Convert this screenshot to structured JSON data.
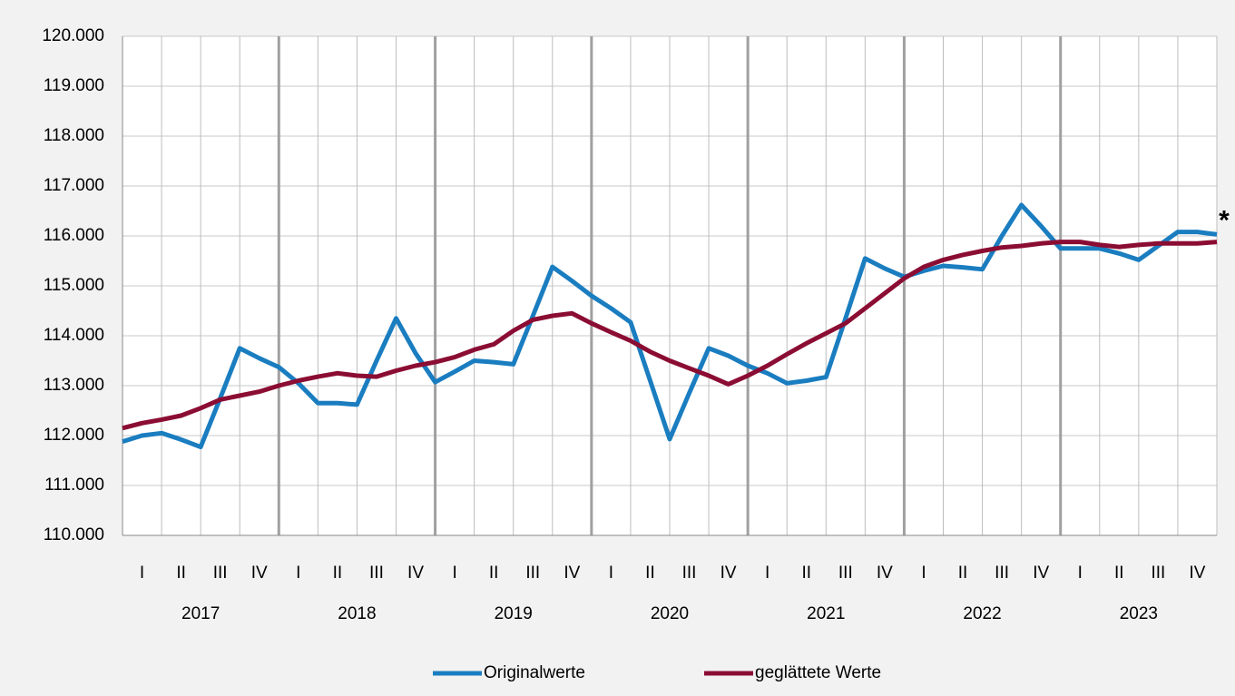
{
  "chart_data": {
    "type": "line",
    "categories": [
      null,
      "I",
      null,
      "II",
      null,
      "III",
      null,
      "IV",
      null,
      "I",
      null,
      "II",
      null,
      "III",
      null,
      "IV",
      null,
      "I",
      null,
      "II",
      null,
      "III",
      null,
      "IV",
      null,
      "I",
      null,
      "II",
      null,
      "III",
      null,
      "IV",
      null,
      "I",
      null,
      "II",
      null,
      "III",
      null,
      "IV",
      null,
      "I",
      null,
      "II",
      null,
      "III",
      null,
      "IV",
      null,
      "I",
      null,
      "II",
      null,
      "III",
      null,
      "IV",
      null
    ],
    "years": [
      "2017",
      "2018",
      "2019",
      "2020",
      "2021",
      "2022",
      "2023"
    ],
    "series": [
      {
        "name": "Originalwerte",
        "color": "#1a7dc0",
        "values": [
          111880,
          112000,
          112050,
          111920,
          111770,
          112750,
          113750,
          113550,
          113370,
          113050,
          112650,
          112650,
          112620,
          113500,
          114350,
          113650,
          113070,
          113280,
          113500,
          113470,
          113430,
          114400,
          115380,
          115100,
          114800,
          114550,
          114270,
          113100,
          111930,
          112850,
          113750,
          113600,
          113400,
          113250,
          113050,
          113100,
          113170,
          114350,
          115550,
          115350,
          115180,
          115300,
          115400,
          115370,
          115330,
          116000,
          116620,
          116200,
          115750,
          115750,
          115750,
          115650,
          115520,
          115800,
          116080,
          116080,
          116030
        ]
      },
      {
        "name": "geglättete Werte",
        "color": "#8b0d33",
        "values": [
          112150,
          112250,
          112320,
          112400,
          112550,
          112720,
          112800,
          112880,
          113000,
          113100,
          113180,
          113250,
          113200,
          113180,
          113300,
          113400,
          113470,
          113570,
          113720,
          113830,
          114100,
          114320,
          114400,
          114450,
          114250,
          114070,
          113900,
          113680,
          113500,
          113350,
          113200,
          113030,
          113200,
          113400,
          113630,
          113850,
          114050,
          114250,
          114550,
          114850,
          115150,
          115380,
          115520,
          115620,
          115700,
          115770,
          115800,
          115850,
          115880,
          115880,
          115820,
          115780,
          115820,
          115850,
          115850,
          115850,
          115880
        ]
      }
    ],
    "ylim": [
      110000,
      120000
    ],
    "yticks": [
      {
        "value": 110000,
        "label": "110.000"
      },
      {
        "value": 111000,
        "label": "111.000"
      },
      {
        "value": 112000,
        "label": "112.000"
      },
      {
        "value": 113000,
        "label": "113.000"
      },
      {
        "value": 114000,
        "label": "114.000"
      },
      {
        "value": 115000,
        "label": "115.000"
      },
      {
        "value": 116000,
        "label": "116.000"
      },
      {
        "value": 117000,
        "label": "117.000"
      },
      {
        "value": 118000,
        "label": "118.000"
      },
      {
        "value": 119000,
        "label": "119.000"
      },
      {
        "value": 120000,
        "label": "120.000"
      }
    ],
    "grid": true,
    "annotation": "*"
  }
}
